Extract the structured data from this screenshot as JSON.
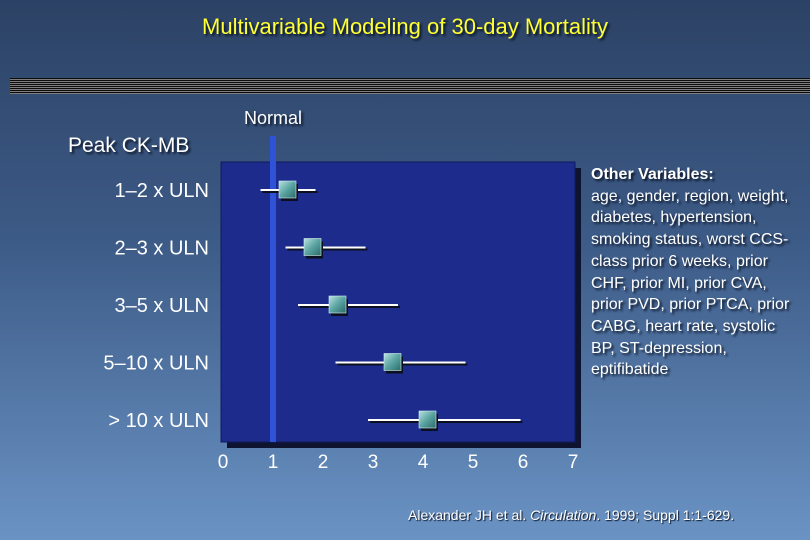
{
  "slide": {
    "title": "Multivariable Modeling of 30-day Mortality",
    "reference_label": "Normal",
    "group_label": "Peak CK-MB",
    "other_variables": {
      "heading": "Other Variables:",
      "body": "age, gender, region, weight, diabetes, hypertension, smoking status, worst CCS-class prior 6 weeks, prior CHF, prior MI, prior CVA, prior PVD, prior PTCA, prior CABG, heart rate, systolic BP, ST-depression, eptifibatide"
    },
    "citation": {
      "authors": "Alexander JH et al. ",
      "journal": "Circulation",
      "details": ". 1999; Suppl 1:1-629."
    }
  },
  "colors": {
    "background_top": "#2c4265",
    "background_bottom": "#6a93c4",
    "plot_fill": "#1c2b8c",
    "reference_line": "#2f52d6",
    "marker": "#5aa4a2",
    "whisker": "#ffffff",
    "title": "#ffff33"
  },
  "chart_data": {
    "type": "forest",
    "xlim": [
      0,
      7
    ],
    "xticks": [
      "0",
      "1",
      "2",
      "3",
      "4",
      "5",
      "6",
      "7"
    ],
    "reference_value": 1,
    "categories": [
      "1–2 x ULN",
      "2–3 x ULN",
      "3–5 x ULN",
      "5–10 x ULN",
      "> 10 x ULN"
    ],
    "estimate": [
      1.3,
      1.8,
      2.3,
      3.4,
      4.1
    ],
    "ci_low": [
      0.75,
      1.25,
      1.5,
      2.25,
      2.9
    ],
    "ci_high": [
      1.85,
      2.85,
      3.5,
      4.85,
      5.95
    ]
  }
}
